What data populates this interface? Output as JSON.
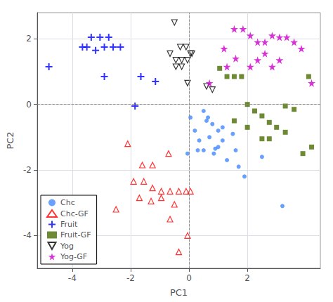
{
  "chart_data": {
    "type": "scatter",
    "xlabel": "PC1",
    "ylabel": "PC2",
    "xlim": [
      -5.2,
      4.5
    ],
    "ylim": [
      -5.0,
      2.8
    ],
    "xticks": [
      -4,
      -2,
      0,
      2
    ],
    "yticks": [
      -4,
      -2,
      0,
      2
    ],
    "grid": true,
    "legend": "lower left",
    "series": [
      {
        "name": "Chc",
        "color": "#4488ff",
        "marker": "circle",
        "x": [
          0.05,
          0.2,
          0.35,
          0.5,
          0.6,
          0.7,
          0.85,
          1.0,
          1.15,
          1.3,
          1.5,
          1.7,
          1.9,
          0.5,
          0.65,
          0.8,
          1.0,
          1.15,
          2.5,
          3.2,
          -0.05,
          0.3,
          0.9,
          1.6
        ],
        "values": [
          -0.4,
          -0.8,
          -1.1,
          -1.4,
          -0.5,
          -1.0,
          -1.5,
          -1.3,
          -0.7,
          -1.7,
          -0.9,
          -1.9,
          -2.2,
          -0.2,
          -0.4,
          -0.6,
          -0.8,
          -1.1,
          -1.6,
          -3.1,
          -1.5,
          -1.4,
          -1.35,
          -1.4
        ]
      },
      {
        "name": "Chc-GF",
        "color": "red",
        "marker": "triangle-open",
        "x": [
          -2.1,
          -1.6,
          -1.25,
          -0.7,
          -1.9,
          -1.55,
          -1.25,
          -0.95,
          -2.5,
          -1.7,
          -1.3,
          -0.95,
          -0.65,
          -0.35,
          -0.1,
          0.05,
          -0.65,
          -0.05,
          -0.35,
          -0.5
        ],
        "values": [
          -1.2,
          -1.85,
          -1.85,
          -1.5,
          -2.35,
          -2.35,
          -2.55,
          -2.65,
          -3.2,
          -2.85,
          -2.95,
          -2.85,
          -2.65,
          -2.65,
          -2.65,
          -2.65,
          -3.5,
          -4.0,
          -4.5,
          -3.05
        ]
      },
      {
        "name": "Fruit",
        "color": "blue",
        "marker": "plus",
        "x": [
          -4.8,
          -3.65,
          -3.35,
          -3.05,
          -2.75,
          -3.5,
          -3.2,
          -2.9,
          -2.6,
          -2.35,
          -1.65,
          -1.15,
          -2.9,
          -1.85
        ],
        "values": [
          1.15,
          1.75,
          2.05,
          2.05,
          2.05,
          1.75,
          1.65,
          1.75,
          1.75,
          1.75,
          0.85,
          0.7,
          0.85,
          -0.05
        ]
      },
      {
        "name": "Fruit-GF",
        "color": "#4a6e00",
        "marker": "square",
        "x": [
          1.05,
          1.3,
          1.55,
          1.8,
          2.0,
          2.25,
          2.5,
          2.75,
          3.0,
          3.3,
          3.6,
          4.1,
          1.55,
          2.0,
          2.5,
          2.75,
          3.3,
          3.9,
          4.2
        ],
        "values": [
          1.1,
          0.85,
          0.85,
          0.85,
          0.0,
          -0.2,
          -0.35,
          -0.55,
          -0.7,
          -0.05,
          -0.15,
          0.85,
          -0.5,
          -0.7,
          -1.05,
          -1.05,
          -0.85,
          -1.5,
          -1.3
        ]
      },
      {
        "name": "Yog",
        "color": "black",
        "marker": "triangle-down-open",
        "x": [
          -0.5,
          -0.3,
          -0.1,
          0.05,
          -0.65,
          -0.45,
          -0.25,
          -0.05,
          0.1,
          -0.25,
          -0.45,
          -0.05,
          0.6,
          0.8
        ],
        "values": [
          2.5,
          1.75,
          1.75,
          1.55,
          1.55,
          1.35,
          1.35,
          1.35,
          1.55,
          1.15,
          1.15,
          0.65,
          0.55,
          0.45
        ]
      },
      {
        "name": "Yog-GF",
        "color": "#cc00cc",
        "marker": "star",
        "x": [
          0.7,
          1.2,
          1.55,
          1.85,
          2.1,
          2.35,
          2.6,
          2.85,
          3.1,
          3.35,
          3.6,
          3.85,
          1.6,
          2.1,
          2.35,
          2.6,
          2.85,
          3.1,
          4.2,
          1.3
        ],
        "values": [
          0.65,
          1.7,
          2.3,
          2.3,
          2.1,
          1.9,
          1.9,
          2.1,
          2.05,
          2.05,
          1.9,
          1.7,
          1.4,
          1.15,
          1.35,
          1.55,
          1.15,
          1.35,
          0.65,
          1.15
        ]
      }
    ]
  }
}
